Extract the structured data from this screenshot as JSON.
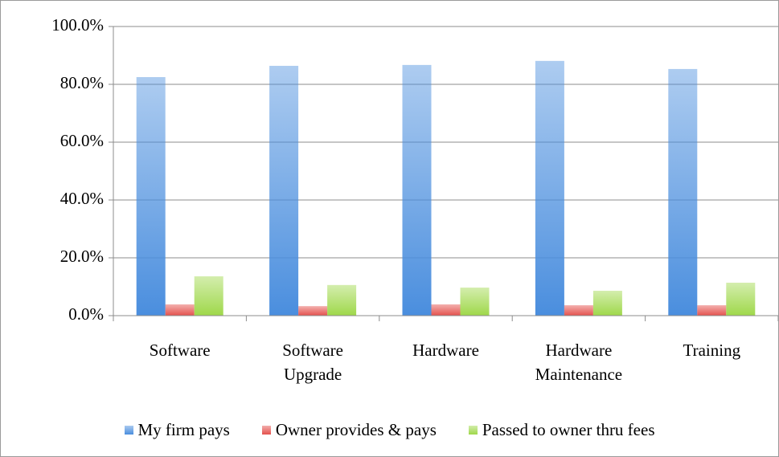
{
  "chart_data": {
    "type": "bar",
    "categories": [
      "Software",
      "Software Upgrade",
      "Hardware",
      "Hardware Maintenance",
      "Training"
    ],
    "series": [
      {
        "name": "My firm pays",
        "color": "#4a8ede",
        "values": [
          82.5,
          86.4,
          86.7,
          88.1,
          85.3
        ]
      },
      {
        "name": "Owner provides & pays",
        "color": "#e4514d",
        "values": [
          3.9,
          3.3,
          3.9,
          3.6,
          3.6
        ]
      },
      {
        "name": "Passed to owner thru fees",
        "color": "#9fd84a",
        "values": [
          13.6,
          10.6,
          9.7,
          8.6,
          11.4
        ]
      }
    ],
    "ylim": [
      0,
      100
    ],
    "yticks": [
      {
        "value": 0,
        "label": "0.0%"
      },
      {
        "value": 20,
        "label": "20.0%"
      },
      {
        "value": 40,
        "label": "40.0%"
      },
      {
        "value": 60,
        "label": "60.0%"
      },
      {
        "value": 80,
        "label": "80.0%"
      },
      {
        "value": 100,
        "label": "100.0%"
      }
    ],
    "grid": true,
    "legend": "bottom"
  }
}
